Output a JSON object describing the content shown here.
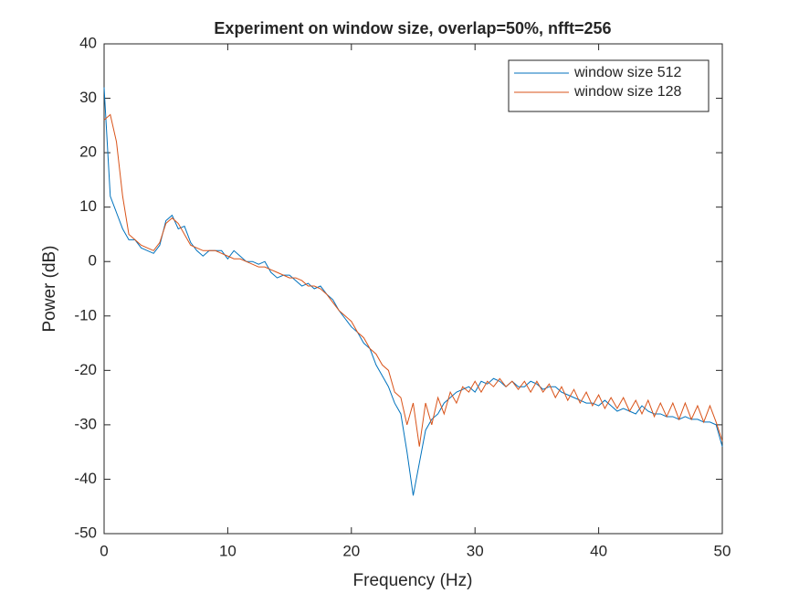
{
  "chart_data": {
    "type": "line",
    "title": "Experiment on window size, overlap=50%, nfft=256",
    "x_label": "Frequency (Hz)",
    "y_label": "Power (dB)",
    "x": [
      0,
      0.5,
      1,
      1.5,
      2,
      2.5,
      3,
      3.5,
      4,
      4.5,
      5,
      5.5,
      6,
      6.5,
      7,
      7.5,
      8,
      8.5,
      9,
      9.5,
      10,
      10.5,
      11,
      11.5,
      12,
      12.5,
      13,
      13.5,
      14,
      14.5,
      15,
      15.5,
      16,
      16.5,
      17,
      17.5,
      18,
      18.5,
      19,
      19.5,
      20,
      20.5,
      21,
      21.5,
      22,
      22.5,
      23,
      23.5,
      24,
      24.5,
      25,
      25.5,
      26,
      26.5,
      27,
      27.5,
      28,
      28.5,
      29,
      29.5,
      30,
      30.5,
      31,
      31.5,
      32,
      32.5,
      33,
      33.5,
      34,
      34.5,
      35,
      35.5,
      36,
      36.5,
      37,
      37.5,
      38,
      38.5,
      39,
      39.5,
      40,
      40.5,
      41,
      41.5,
      42,
      42.5,
      43,
      43.5,
      44,
      44.5,
      45,
      45.5,
      46,
      46.5,
      47,
      47.5,
      48,
      48.5,
      49,
      49.5,
      50
    ],
    "series": [
      {
        "name": "window size 512",
        "color": "#0072bd",
        "values": [
          32,
          12,
          9,
          6,
          4,
          4,
          2.5,
          2,
          1.5,
          3,
          7.5,
          8.5,
          6,
          6.5,
          3.5,
          2,
          1,
          2,
          2,
          2,
          0.5,
          2,
          1,
          0,
          0,
          -0.5,
          0,
          -2,
          -3,
          -2.5,
          -2.5,
          -3.5,
          -4.5,
          -4,
          -5,
          -4.5,
          -6,
          -7,
          -9,
          -10.5,
          -12,
          -13,
          -15,
          -16,
          -19,
          -21,
          -23,
          -26,
          -28,
          -35,
          -43,
          -37,
          -31,
          -29,
          -28,
          -26,
          -25,
          -24,
          -23.5,
          -23,
          -24,
          -22,
          -22.5,
          -21.5,
          -22,
          -23,
          -22,
          -23,
          -23,
          -22,
          -22.5,
          -23.5,
          -23,
          -23,
          -24,
          -24.5,
          -25,
          -25.5,
          -26,
          -26,
          -26.5,
          -25.5,
          -26.5,
          -27.5,
          -27,
          -27.5,
          -28,
          -26.5,
          -27.5,
          -28,
          -28,
          -28.5,
          -28.5,
          -29,
          -28.5,
          -29,
          -29,
          -29.5,
          -29.5,
          -30,
          -34
        ]
      },
      {
        "name": "window size 128",
        "color": "#d95319",
        "values": [
          26,
          27,
          22,
          12,
          5,
          4,
          3,
          2.5,
          2,
          3.5,
          7,
          8,
          7,
          5,
          3,
          2.5,
          2,
          2,
          2,
          1.5,
          1,
          0.5,
          0.5,
          0,
          -0.5,
          -1,
          -1,
          -1.5,
          -2,
          -2.5,
          -3,
          -3,
          -3.5,
          -4.5,
          -4.5,
          -5,
          -6,
          -7.5,
          -9,
          -10,
          -11,
          -13,
          -14,
          -16,
          -17,
          -19,
          -20,
          -24,
          -25,
          -30,
          -26,
          -34,
          -26,
          -30,
          -25,
          -28,
          -24,
          -26,
          -23,
          -24,
          -22,
          -24,
          -22,
          -23,
          -21.5,
          -23,
          -22,
          -23.5,
          -22,
          -24,
          -22,
          -24,
          -22.5,
          -25,
          -23,
          -25.5,
          -23.5,
          -26,
          -24,
          -26.5,
          -24.5,
          -27,
          -25,
          -27,
          -25,
          -27.5,
          -25.5,
          -28,
          -25.5,
          -28.5,
          -26,
          -28.5,
          -26,
          -29,
          -26,
          -29,
          -26.5,
          -29.5,
          -26.5,
          -29.5,
          -33
        ]
      }
    ],
    "xlim": [
      0,
      50
    ],
    "xticks": [
      0,
      10,
      20,
      30,
      40,
      50
    ],
    "ylim": [
      -50,
      40
    ],
    "yticks": [
      -50,
      -40,
      -30,
      -20,
      -10,
      0,
      10,
      20,
      30,
      40
    ],
    "legend": "northeast",
    "grid": false
  }
}
